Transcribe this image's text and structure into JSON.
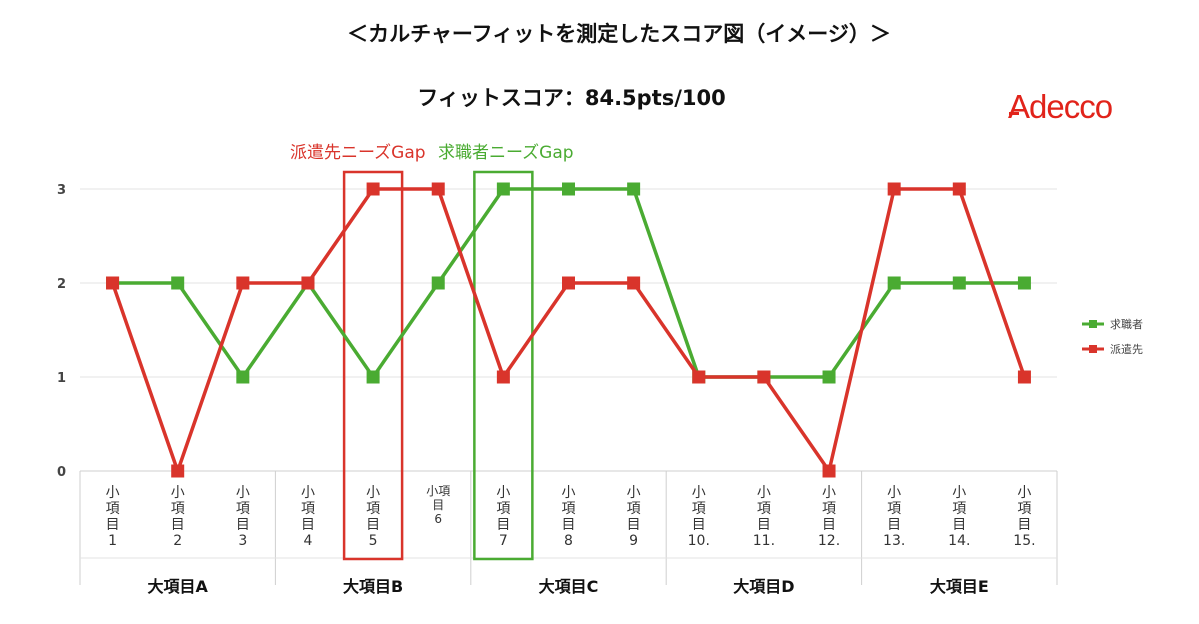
{
  "title": "＜カルチャーフィットを測定したスコア図（イメージ）＞",
  "subtitle": "フィットスコア：84.5pts/100",
  "logo_text": "Adecco",
  "colors": {
    "seeker": "#4aab32",
    "dispatch": "#d9342b",
    "grid": "#e3e3e3",
    "axis": "#cfcfcf"
  },
  "chart_data": {
    "type": "line",
    "categories": [
      [
        "小",
        "項",
        "目",
        "1"
      ],
      [
        "小",
        "項",
        "目",
        "2"
      ],
      [
        "小",
        "項",
        "目",
        "3"
      ],
      [
        "小",
        "項",
        "目",
        "4"
      ],
      [
        "小",
        "項",
        "目",
        "5"
      ],
      [
        "小項",
        "目",
        "6"
      ],
      [
        "小",
        "項",
        "目",
        "7"
      ],
      [
        "小",
        "項",
        "目",
        "8"
      ],
      [
        "小",
        "項",
        "目",
        "9"
      ],
      [
        "小",
        "項",
        "目",
        "10."
      ],
      [
        "小",
        "項",
        "目",
        "11."
      ],
      [
        "小",
        "項",
        "目",
        "12."
      ],
      [
        "小",
        "項",
        "目",
        "13."
      ],
      [
        "小",
        "項",
        "目",
        "14."
      ],
      [
        "小",
        "項",
        "目",
        "15."
      ]
    ],
    "groups": [
      {
        "label": "大項目A",
        "start": 0,
        "end": 2
      },
      {
        "label": "大項目B",
        "start": 3,
        "end": 5
      },
      {
        "label": "大項目C",
        "start": 6,
        "end": 8
      },
      {
        "label": "大項目D",
        "start": 9,
        "end": 11
      },
      {
        "label": "大項目E",
        "start": 12,
        "end": 14
      }
    ],
    "series": [
      {
        "name": "求職者",
        "color": "#4aab32",
        "values": [
          2,
          2,
          1,
          2,
          1,
          2,
          3,
          3,
          3,
          1,
          1,
          1,
          2,
          2,
          2
        ]
      },
      {
        "name": "派遣先",
        "color": "#d9342b",
        "values": [
          2,
          0,
          2,
          2,
          3,
          3,
          1,
          2,
          2,
          1,
          1,
          0,
          3,
          3,
          1
        ]
      }
    ],
    "ylim": [
      0,
      3
    ],
    "yticks": [
      0,
      1,
      2,
      3
    ],
    "grid": true,
    "legend_position": "right",
    "annotations": [
      {
        "label": "派遣先ニーズGap",
        "index": 4,
        "color": "#d9342b"
      },
      {
        "label": "求職者ニーズGap",
        "index": 6,
        "color": "#4aab32"
      }
    ]
  }
}
